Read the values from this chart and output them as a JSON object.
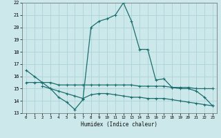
{
  "xlabel": "Humidex (Indice chaleur)",
  "xlim": [
    -0.5,
    23.5
  ],
  "ylim": [
    13,
    22
  ],
  "yticks": [
    13,
    14,
    15,
    16,
    17,
    18,
    19,
    20,
    21,
    22
  ],
  "xticks": [
    0,
    1,
    2,
    3,
    4,
    5,
    6,
    7,
    8,
    9,
    10,
    11,
    12,
    13,
    14,
    15,
    16,
    17,
    18,
    19,
    20,
    21,
    22,
    23
  ],
  "bg_color": "#cce8ea",
  "grid_color": "#aad4d8",
  "line_color": "#1a6e6e",
  "line1_x": [
    0,
    1,
    2,
    3,
    4,
    5,
    6,
    7,
    8,
    9,
    10,
    11,
    12,
    13,
    14,
    15,
    16,
    17,
    18,
    19,
    20,
    21,
    22,
    23
  ],
  "line1_y": [
    16.5,
    16.0,
    15.5,
    15.0,
    14.3,
    13.9,
    13.3,
    14.1,
    20.0,
    20.5,
    20.7,
    21.0,
    22.0,
    20.5,
    18.2,
    18.2,
    15.7,
    15.8,
    15.1,
    15.0,
    15.0,
    14.8,
    14.3,
    13.6
  ],
  "line2_x": [
    0,
    1,
    2,
    3,
    4,
    5,
    6,
    7,
    8,
    9,
    10,
    11,
    12,
    13,
    14,
    15,
    16,
    17,
    18,
    19,
    20,
    21,
    22,
    23
  ],
  "line2_y": [
    15.5,
    15.5,
    15.5,
    15.5,
    15.3,
    15.3,
    15.3,
    15.3,
    15.3,
    15.3,
    15.3,
    15.3,
    15.3,
    15.3,
    15.2,
    15.2,
    15.2,
    15.2,
    15.1,
    15.1,
    15.1,
    15.0,
    15.0,
    15.0
  ],
  "line3_x": [
    2,
    3,
    4,
    5,
    6,
    7,
    8,
    9,
    10,
    11,
    12,
    13,
    14,
    15,
    16,
    17,
    18,
    19,
    20,
    21,
    22,
    23
  ],
  "line3_y": [
    15.2,
    15.0,
    14.8,
    14.6,
    14.4,
    14.2,
    14.5,
    14.6,
    14.6,
    14.5,
    14.4,
    14.3,
    14.3,
    14.2,
    14.2,
    14.2,
    14.1,
    14.0,
    13.9,
    13.8,
    13.7,
    13.6
  ]
}
